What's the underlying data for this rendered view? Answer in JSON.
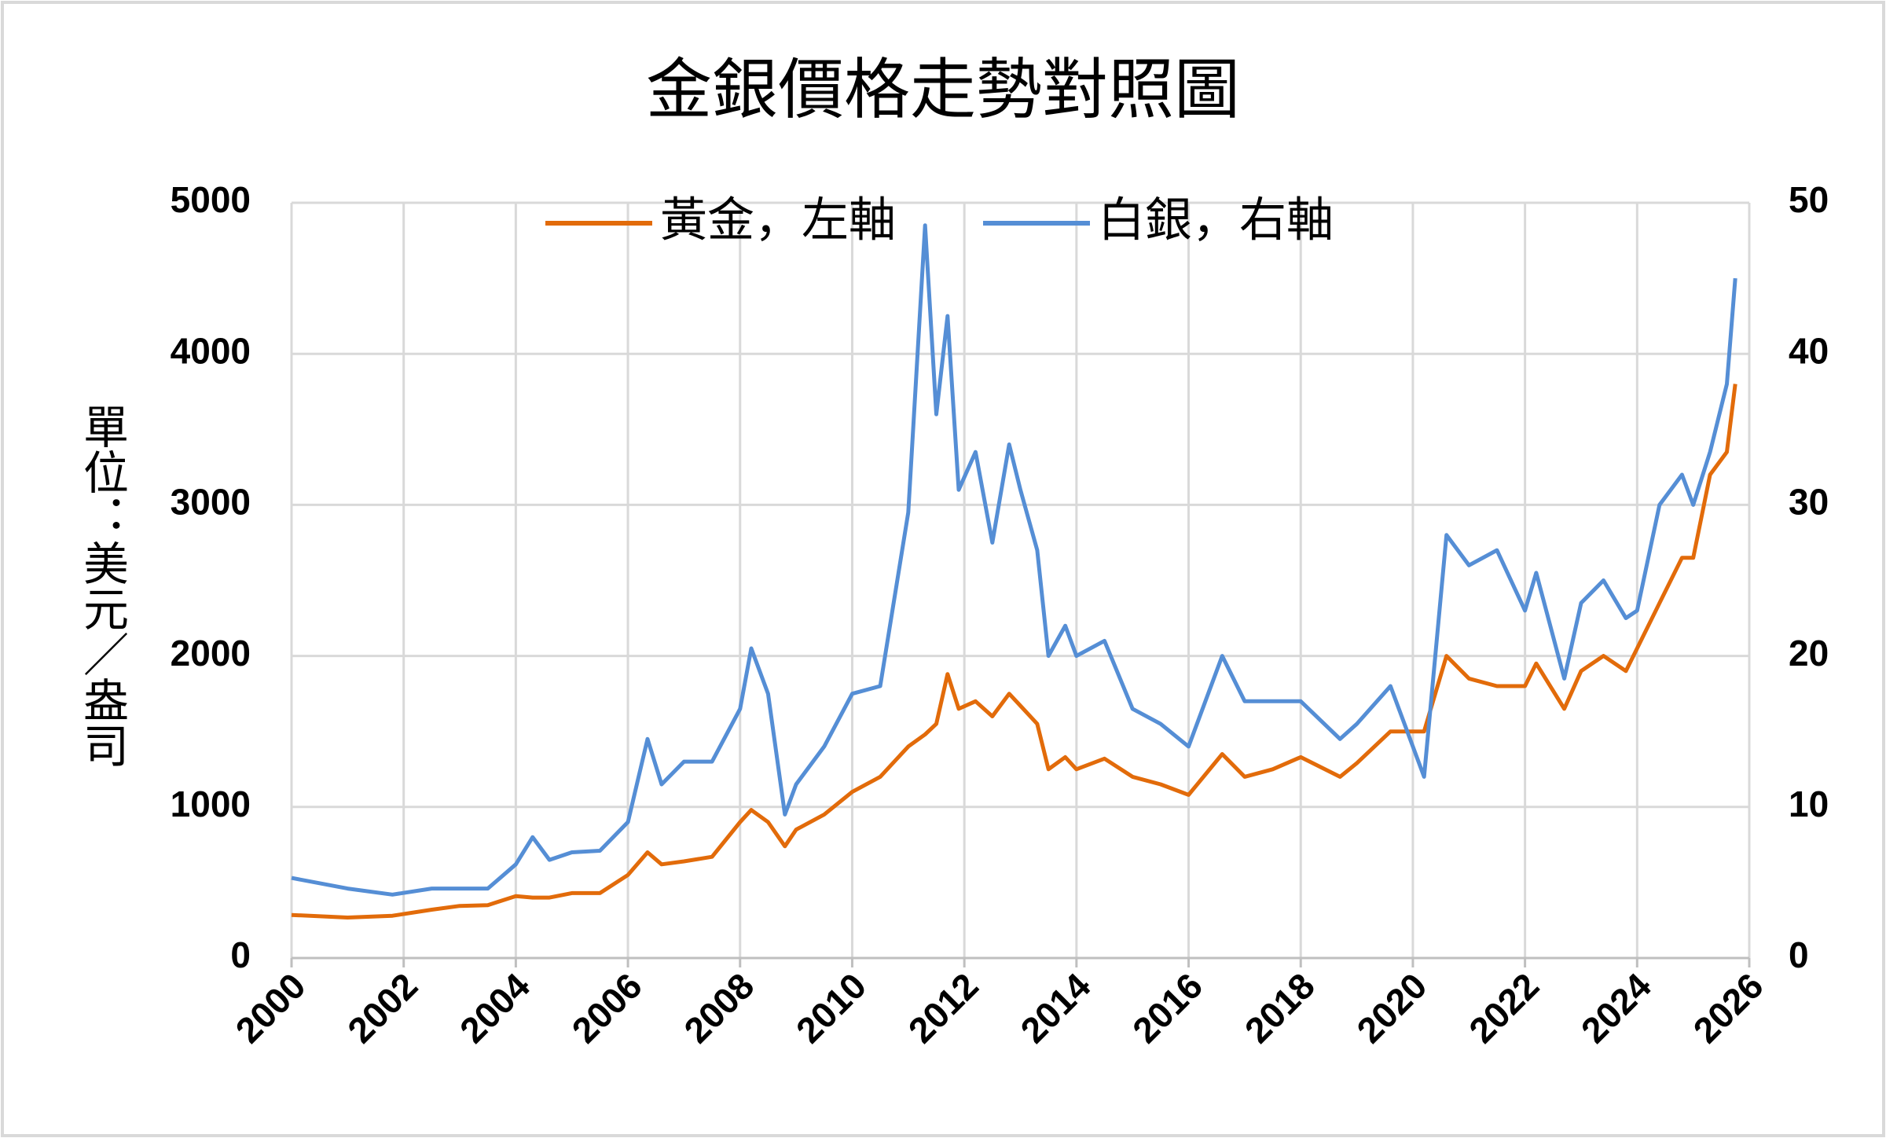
{
  "chart_data": {
    "type": "line",
    "title": "金銀價格走勢對照圖",
    "y_label": "單位：美元／盎司",
    "x": [
      2000.0,
      2001.0,
      2001.8,
      2002.5,
      2003.0,
      2003.5,
      2004.0,
      2004.3,
      2004.6,
      2005.0,
      2005.5,
      2006.0,
      2006.35,
      2006.6,
      2007.0,
      2007.5,
      2008.0,
      2008.2,
      2008.5,
      2008.8,
      2009.0,
      2009.5,
      2010.0,
      2010.5,
      2011.0,
      2011.3,
      2011.5,
      2011.7,
      2011.9,
      2012.2,
      2012.5,
      2012.8,
      2013.0,
      2013.3,
      2013.5,
      2013.8,
      2014.0,
      2014.5,
      2015.0,
      2015.5,
      2016.0,
      2016.6,
      2017.0,
      2017.5,
      2018.0,
      2018.7,
      2019.0,
      2019.6,
      2020.2,
      2020.6,
      2021.0,
      2021.5,
      2022.0,
      2022.2,
      2022.7,
      2023.0,
      2023.4,
      2023.8,
      2024.0,
      2024.4,
      2024.8,
      2025.0,
      2025.3,
      2025.6,
      2025.75
    ],
    "series": [
      {
        "name": "黃金，左軸",
        "color": "#e26b0a",
        "axis": "y",
        "values": [
          285,
          268,
          280,
          320,
          345,
          350,
          410,
          400,
          400,
          430,
          430,
          550,
          700,
          620,
          640,
          670,
          900,
          980,
          900,
          740,
          850,
          950,
          1100,
          1200,
          1400,
          1480,
          1550,
          1880,
          1650,
          1700,
          1600,
          1750,
          1670,
          1550,
          1250,
          1330,
          1250,
          1320,
          1200,
          1150,
          1080,
          1350,
          1200,
          1250,
          1330,
          1200,
          1290,
          1500,
          1500,
          2000,
          1850,
          1800,
          1800,
          1950,
          1650,
          1900,
          2000,
          1900,
          2050,
          2350,
          2650,
          2650,
          3200,
          3350,
          3800
        ]
      },
      {
        "name": "白銀，右軸",
        "color": "#558ed5",
        "axis": "y2",
        "values": [
          5.3,
          4.6,
          4.2,
          4.6,
          4.6,
          4.6,
          6.2,
          8.0,
          6.5,
          7.0,
          7.1,
          9.0,
          14.5,
          11.5,
          13.0,
          13.0,
          16.5,
          20.5,
          17.5,
          9.5,
          11.5,
          14.0,
          17.5,
          18.0,
          29.5,
          48.5,
          36.0,
          42.5,
          31.0,
          33.5,
          27.5,
          34.0,
          31.0,
          27.0,
          20.0,
          22.0,
          20.0,
          21.0,
          16.5,
          15.5,
          14.0,
          20.0,
          17.0,
          17.0,
          17.0,
          14.5,
          15.5,
          18.0,
          12.0,
          28.0,
          26.0,
          27.0,
          23.0,
          25.5,
          18.5,
          23.5,
          25.0,
          22.5,
          23.0,
          30.0,
          32.0,
          30.0,
          33.5,
          38.0,
          45.0
        ]
      }
    ],
    "xlim": [
      2000,
      2026
    ],
    "xticks": [
      2000,
      2002,
      2004,
      2006,
      2008,
      2010,
      2012,
      2014,
      2016,
      2018,
      2020,
      2022,
      2024,
      2026
    ],
    "ylim": [
      0,
      5000
    ],
    "yticks": [
      0,
      1000,
      2000,
      3000,
      4000,
      5000
    ],
    "y2lim": [
      0,
      50
    ],
    "y2ticks": [
      0,
      10,
      20,
      30,
      40,
      50
    ],
    "grid": true,
    "legend": "top"
  }
}
